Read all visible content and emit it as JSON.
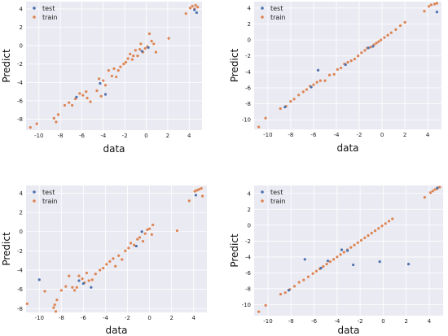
{
  "colors": {
    "test": "#4c72b0",
    "train": "#dd8452",
    "panel_bg": "#eaeaf2",
    "grid": "#ffffff"
  },
  "chart_data": [
    {
      "type": "scatter",
      "xlabel": "data",
      "ylabel": "Predict",
      "xlim": [
        -11.2,
        5.2
      ],
      "ylim": [
        -9.2,
        4.8
      ],
      "xticks": [
        -10,
        -8,
        -6,
        -4,
        -2,
        0,
        2,
        4
      ],
      "yticks": [
        -8,
        -6,
        -4,
        -2,
        0,
        2,
        4
      ],
      "legend": "top-left",
      "grid": true,
      "series": [
        {
          "name": "test",
          "points": [
            [
              -6.5,
              -5.6
            ],
            [
              -4.3,
              -4.1
            ],
            [
              -3.8,
              -5.3
            ],
            [
              -0.4,
              -0.6
            ],
            [
              0.2,
              -0.2
            ],
            [
              4.5,
              3.9
            ],
            [
              4.7,
              3.6
            ]
          ]
        },
        {
          "name": "train",
          "points": [
            [
              -10.8,
              -8.9
            ],
            [
              -10.2,
              -8.5
            ],
            [
              -8.6,
              -7.9
            ],
            [
              -8.4,
              -8.3
            ],
            [
              -8.2,
              -7.5
            ],
            [
              -7.6,
              -6.5
            ],
            [
              -7.2,
              -6.2
            ],
            [
              -6.9,
              -6.5
            ],
            [
              -6.6,
              -5.8
            ],
            [
              -6.2,
              -5.2
            ],
            [
              -5.9,
              -5.4
            ],
            [
              -5.6,
              -5.0
            ],
            [
              -5.5,
              -5.7
            ],
            [
              -5.2,
              -6.1
            ],
            [
              -4.6,
              -4.9
            ],
            [
              -4.4,
              -3.6
            ],
            [
              -4.2,
              -5.5
            ],
            [
              -4.0,
              -3.8
            ],
            [
              -3.8,
              -4.3
            ],
            [
              -3.5,
              -2.7
            ],
            [
              -3.2,
              -3.3
            ],
            [
              -3.0,
              -2.5
            ],
            [
              -2.8,
              -3.4
            ],
            [
              -2.6,
              -2.7
            ],
            [
              -2.4,
              -2.3
            ],
            [
              -2.1,
              -2.0
            ],
            [
              -1.9,
              -1.8
            ],
            [
              -1.7,
              -1.4
            ],
            [
              -1.5,
              -0.9
            ],
            [
              -1.3,
              -1.5
            ],
            [
              -1.2,
              -1.1
            ],
            [
              -1.0,
              -0.5
            ],
            [
              -0.8,
              -1.1
            ],
            [
              -0.6,
              -0.4
            ],
            [
              -0.5,
              0.2
            ],
            [
              -0.3,
              -0.7
            ],
            [
              -0.1,
              -0.3
            ],
            [
              0.1,
              -0.1
            ],
            [
              0.3,
              1.3
            ],
            [
              0.5,
              0.5
            ],
            [
              0.7,
              0.2
            ],
            [
              0.9,
              -0.7
            ],
            [
              2.1,
              0.8
            ],
            [
              3.7,
              3.5
            ],
            [
              4.1,
              4.1
            ],
            [
              4.3,
              4.3
            ],
            [
              4.5,
              4.0
            ],
            [
              4.6,
              4.4
            ],
            [
              4.8,
              4.2
            ]
          ]
        }
      ]
    },
    {
      "type": "scatter",
      "xlabel": "data",
      "ylabel": "Predict",
      "xlim": [
        -11.2,
        5.2
      ],
      "ylim": [
        -11.2,
        4.8
      ],
      "xticks": [
        -10,
        -8,
        -6,
        -4,
        -2,
        0,
        2,
        4
      ],
      "yticks": [
        -10,
        -8,
        -6,
        -4,
        -2,
        0,
        2,
        4
      ],
      "legend": "top-left",
      "grid": true,
      "series": [
        {
          "name": "test",
          "points": [
            [
              -8.5,
              -8.4
            ],
            [
              -6.2,
              -5.9
            ],
            [
              -5.6,
              -3.8
            ],
            [
              -3.2,
              -3.1
            ],
            [
              -1.2,
              -1.0
            ],
            [
              -0.8,
              -0.8
            ],
            [
              4.8,
              3.5
            ]
          ]
        },
        {
          "name": "train",
          "points": [
            [
              -10.8,
              -10.9
            ],
            [
              -10.2,
              -9.8
            ],
            [
              -8.9,
              -8.6
            ],
            [
              -8.4,
              -8.3
            ],
            [
              -8.0,
              -7.7
            ],
            [
              -7.7,
              -7.4
            ],
            [
              -7.3,
              -6.9
            ],
            [
              -6.9,
              -6.5
            ],
            [
              -6.6,
              -6.2
            ],
            [
              -6.3,
              -5.8
            ],
            [
              -6.0,
              -5.6
            ],
            [
              -5.7,
              -5.3
            ],
            [
              -5.4,
              -5.1
            ],
            [
              -5.0,
              -5.1
            ],
            [
              -4.6,
              -4.4
            ],
            [
              -4.2,
              -4.3
            ],
            [
              -3.9,
              -3.7
            ],
            [
              -3.6,
              -3.5
            ],
            [
              -3.3,
              -3.0
            ],
            [
              -3.0,
              -2.8
            ],
            [
              -2.7,
              -2.6
            ],
            [
              -2.4,
              -2.4
            ],
            [
              -2.1,
              -2.0
            ],
            [
              -1.8,
              -1.6
            ],
            [
              -1.5,
              -1.3
            ],
            [
              -1.3,
              -1.0
            ],
            [
              -1.0,
              -0.9
            ],
            [
              -0.7,
              -0.6
            ],
            [
              -0.5,
              -0.4
            ],
            [
              -0.3,
              -0.2
            ],
            [
              -0.1,
              0.0
            ],
            [
              0.2,
              0.3
            ],
            [
              0.5,
              0.6
            ],
            [
              0.8,
              0.9
            ],
            [
              1.2,
              1.3
            ],
            [
              1.6,
              1.8
            ],
            [
              2.0,
              2.2
            ],
            [
              3.7,
              3.6
            ],
            [
              4.1,
              4.2
            ],
            [
              4.3,
              4.4
            ],
            [
              4.6,
              4.5
            ],
            [
              4.8,
              4.6
            ]
          ]
        }
      ]
    },
    {
      "type": "scatter",
      "xlabel": "data",
      "ylabel": "Predict",
      "xlim": [
        -11.2,
        5.2
      ],
      "ylim": [
        -8.4,
        4.8
      ],
      "xticks": [
        -10,
        -8,
        -6,
        -4,
        -2,
        0,
        2,
        4
      ],
      "yticks": [
        -8,
        -6,
        -4,
        -2,
        0,
        2,
        4
      ],
      "legend": "top-left",
      "grid": true,
      "series": [
        {
          "name": "test",
          "points": [
            [
              -10.0,
              -5.0
            ],
            [
              -6.4,
              -5.1
            ],
            [
              -6.0,
              -5.4
            ],
            [
              -5.3,
              -5.8
            ],
            [
              -1.2,
              -1.5
            ],
            [
              -0.7,
              0.0
            ],
            [
              4.2,
              3.8
            ]
          ]
        },
        {
          "name": "train",
          "points": [
            [
              -11.1,
              -7.5
            ],
            [
              -9.5,
              -6.2
            ],
            [
              -8.7,
              -7.9
            ],
            [
              -8.6,
              -7.6
            ],
            [
              -8.5,
              -8.3
            ],
            [
              -8.4,
              -7.1
            ],
            [
              -8.0,
              -6.1
            ],
            [
              -7.6,
              -5.7
            ],
            [
              -7.3,
              -4.6
            ],
            [
              -7.0,
              -5.8
            ],
            [
              -6.8,
              -6.1
            ],
            [
              -6.6,
              -5.8
            ],
            [
              -6.4,
              -4.6
            ],
            [
              -6.1,
              -4.9
            ],
            [
              -5.9,
              -5.3
            ],
            [
              -5.7,
              -4.3
            ],
            [
              -5.5,
              -5.1
            ],
            [
              -5.2,
              -5.0
            ],
            [
              -4.9,
              -4.4
            ],
            [
              -4.5,
              -4.0
            ],
            [
              -4.2,
              -3.8
            ],
            [
              -3.9,
              -3.4
            ],
            [
              -3.6,
              -3.1
            ],
            [
              -3.3,
              -2.8
            ],
            [
              -3.1,
              -3.6
            ],
            [
              -2.8,
              -2.5
            ],
            [
              -2.5,
              -2.9
            ],
            [
              -2.2,
              -2.0
            ],
            [
              -1.9,
              -1.7
            ],
            [
              -1.7,
              -1.2
            ],
            [
              -1.4,
              -1.4
            ],
            [
              -1.1,
              -0.8
            ],
            [
              -0.9,
              -0.6
            ],
            [
              -0.6,
              -1.0
            ],
            [
              -0.4,
              -0.2
            ],
            [
              -0.2,
              0.2
            ],
            [
              0.0,
              0.3
            ],
            [
              0.2,
              -0.3
            ],
            [
              0.3,
              0.7
            ],
            [
              2.5,
              0.1
            ],
            [
              3.6,
              3.2
            ],
            [
              4.1,
              4.2
            ],
            [
              4.3,
              4.3
            ],
            [
              4.5,
              4.4
            ],
            [
              4.7,
              4.5
            ],
            [
              4.8,
              3.7
            ]
          ]
        }
      ]
    },
    {
      "type": "scatter",
      "xlabel": "data",
      "ylabel": "Predict",
      "xlim": [
        -11.2,
        5.2
      ],
      "ylim": [
        -11.4,
        5.0
      ],
      "xticks": [
        -10,
        -8,
        -6,
        -4,
        -2,
        0,
        2,
        4
      ],
      "yticks": [
        -10,
        -8,
        -6,
        -4,
        -2,
        0,
        2,
        4
      ],
      "legend": "top-left",
      "grid": true,
      "series": [
        {
          "name": "test",
          "points": [
            [
              -6.8,
              -4.3
            ],
            [
              -5.4,
              -5.4
            ],
            [
              -4.8,
              -4.5
            ],
            [
              -3.6,
              -3.1
            ],
            [
              -3.1,
              -3.2
            ],
            [
              -2.6,
              -5.0
            ],
            [
              -0.3,
              -4.6
            ],
            [
              2.2,
              -4.9
            ],
            [
              -8.2,
              -8.2
            ],
            [
              4.7,
              4.7
            ]
          ]
        },
        {
          "name": "train",
          "points": [
            [
              -10.8,
              -10.9
            ],
            [
              -10.2,
              -10.1
            ],
            [
              -8.9,
              -8.7
            ],
            [
              -8.5,
              -8.5
            ],
            [
              -8.1,
              -8.1
            ],
            [
              -7.7,
              -7.7
            ],
            [
              -7.3,
              -7.2
            ],
            [
              -6.9,
              -6.9
            ],
            [
              -6.5,
              -6.5
            ],
            [
              -6.1,
              -6.1
            ],
            [
              -5.8,
              -5.8
            ],
            [
              -5.5,
              -5.5
            ],
            [
              -5.2,
              -5.2
            ],
            [
              -4.9,
              -4.9
            ],
            [
              -4.6,
              -4.6
            ],
            [
              -4.3,
              -4.3
            ],
            [
              -4.0,
              -4.0
            ],
            [
              -3.7,
              -3.7
            ],
            [
              -3.4,
              -3.4
            ],
            [
              -3.1,
              -3.1
            ],
            [
              -2.8,
              -2.8
            ],
            [
              -2.5,
              -2.5
            ],
            [
              -2.2,
              -2.2
            ],
            [
              -1.9,
              -1.9
            ],
            [
              -1.6,
              -1.6
            ],
            [
              -1.3,
              -1.3
            ],
            [
              -1.0,
              -1.0
            ],
            [
              -0.7,
              -0.7
            ],
            [
              -0.4,
              -0.4
            ],
            [
              -0.1,
              -0.1
            ],
            [
              0.2,
              0.2
            ],
            [
              0.5,
              0.5
            ],
            [
              0.8,
              0.8
            ],
            [
              3.6,
              3.5
            ],
            [
              4.1,
              4.1
            ],
            [
              4.3,
              4.3
            ],
            [
              4.5,
              4.5
            ],
            [
              4.7,
              4.6
            ],
            [
              4.9,
              4.8
            ]
          ]
        }
      ]
    }
  ]
}
